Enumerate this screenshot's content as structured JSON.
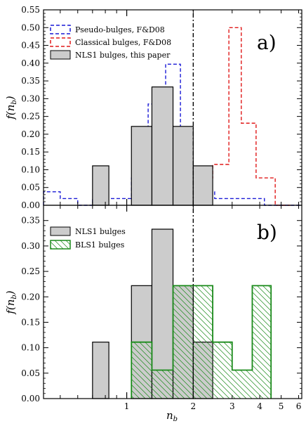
{
  "chart_data": [
    {
      "type": "histogram-step",
      "panel_label": "a)",
      "xlabel": "",
      "ylabel": "f(n_b)",
      "xscale": "log",
      "xlim": [
        0.42,
        6.2
      ],
      "ylim": [
        0,
        0.55
      ],
      "yticks": [
        0,
        0.05,
        0.1,
        0.15,
        0.2,
        0.25,
        0.3,
        0.35,
        0.4,
        0.45,
        0.5,
        0.55
      ],
      "ytick_labels": [
        "0.00",
        "0.05",
        "0.10",
        "0.15",
        "0.20",
        "0.25",
        "0.30",
        "0.35",
        "0.40",
        "0.45",
        "0.50",
        "0.55"
      ],
      "vline_x": 2,
      "legend_position": "top-left",
      "series": [
        {
          "name": "Pseudo-bulges, F&D08",
          "style": "dashed",
          "color": "#1a1ad6",
          "bins": [
            [
              0.42,
              0.5,
              0.038
            ],
            [
              0.5,
              0.6,
              0.019
            ],
            [
              0.6,
              0.7,
              0.0
            ],
            [
              0.7,
              1.05,
              0.019
            ],
            [
              1.05,
              1.25,
              0.077
            ],
            [
              1.25,
              1.5,
              0.285
            ],
            [
              1.5,
              1.75,
              0.397
            ],
            [
              1.75,
              2.15,
              0.077
            ],
            [
              2.15,
              2.5,
              0.038
            ],
            [
              2.5,
              3.0,
              0.019
            ],
            [
              3.0,
              3.6,
              0.019
            ],
            [
              3.6,
              4.2,
              0.019
            ],
            [
              4.2,
              6.2,
              0.0
            ]
          ]
        },
        {
          "name": "Classical bulges, F&D08",
          "style": "dashed",
          "color": "#e01919",
          "bins": [
            [
              2.0,
              2.45,
              0.077
            ],
            [
              2.45,
              2.9,
              0.115
            ],
            [
              2.9,
              3.3,
              0.5
            ],
            [
              3.3,
              3.85,
              0.231
            ],
            [
              3.85,
              4.7,
              0.077
            ],
            [
              4.7,
              5.5,
              0.0
            ]
          ]
        },
        {
          "name": "NLS1 bulges, this paper",
          "style": "filled",
          "color": "#cccccc",
          "bins": [
            [
              0.7,
              0.83,
              0.111
            ],
            [
              1.05,
              1.3,
              0.222
            ],
            [
              1.3,
              1.62,
              0.333
            ],
            [
              1.62,
              2.0,
              0.222
            ],
            [
              2.0,
              2.45,
              0.111
            ]
          ]
        }
      ]
    },
    {
      "type": "histogram-step",
      "panel_label": "b)",
      "xlabel": "n_b",
      "ylabel": "f(n_b)",
      "xscale": "log",
      "xlim": [
        0.42,
        6.2
      ],
      "ylim": [
        0,
        0.38
      ],
      "xticks": [
        1,
        2,
        3,
        4,
        5,
        6
      ],
      "xtick_labels": [
        "1",
        "2",
        "3",
        "4",
        "5",
        "6"
      ],
      "yticks": [
        0,
        0.05,
        0.1,
        0.15,
        0.2,
        0.25,
        0.3,
        0.35
      ],
      "ytick_labels": [
        "0.00",
        "0.05",
        "0.10",
        "0.15",
        "0.20",
        "0.25",
        "0.30",
        "0.35"
      ],
      "vline_x": 2,
      "legend_position": "top-left",
      "series": [
        {
          "name": "NLS1 bulges",
          "style": "filled",
          "color": "#cccccc",
          "bins": [
            [
              0.7,
              0.83,
              0.111
            ],
            [
              1.05,
              1.3,
              0.222
            ],
            [
              1.3,
              1.62,
              0.333
            ],
            [
              1.62,
              2.0,
              0.222
            ],
            [
              2.0,
              2.45,
              0.111
            ]
          ]
        },
        {
          "name": "BLS1 bulges",
          "style": "hatched",
          "color": "#1a8a1a",
          "bins": [
            [
              1.05,
              1.3,
              0.111
            ],
            [
              1.3,
              1.62,
              0.056
            ],
            [
              1.62,
              2.45,
              0.222
            ],
            [
              2.45,
              3.0,
              0.111
            ],
            [
              3.0,
              3.7,
              0.056
            ],
            [
              3.7,
              4.5,
              0.222
            ]
          ]
        }
      ]
    }
  ]
}
